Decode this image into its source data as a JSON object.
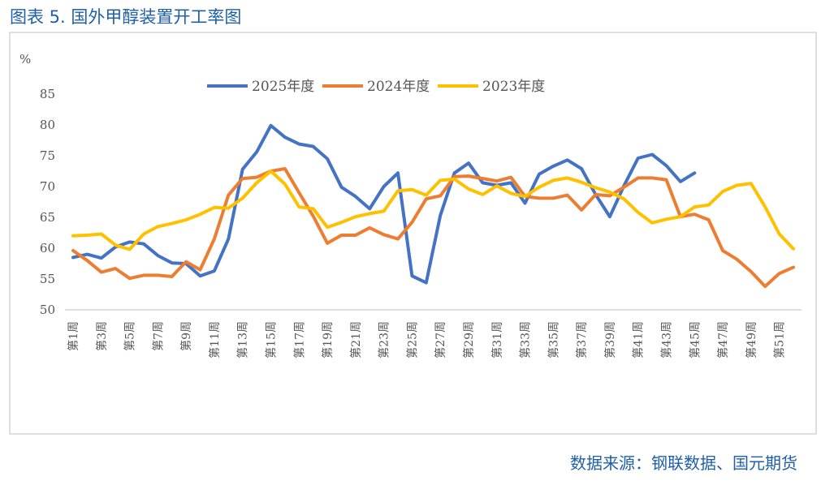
{
  "chart_data": {
    "type": "line",
    "title": "图表 5.   国外甲醇装置开工率图",
    "y_unit": "%",
    "source": "数据来源：钢联数据、国元期货",
    "categories": [
      "第1周",
      null,
      "第3周",
      null,
      "第5周",
      null,
      "第7周",
      null,
      "第9周",
      null,
      "第11周",
      null,
      "第13周",
      null,
      "第15周",
      null,
      "第17周",
      null,
      "第19周",
      null,
      "第21周",
      null,
      "第23周",
      null,
      "第25周",
      null,
      "第27周",
      null,
      "第29周",
      null,
      "第31周",
      null,
      "第33周",
      null,
      "第35周",
      null,
      "第37周",
      null,
      "第39周",
      null,
      "第41周",
      null,
      "第43周",
      null,
      "第45周",
      null,
      "第47周",
      null,
      "第49周",
      null,
      "第51周",
      null
    ],
    "ylim": [
      50,
      85
    ],
    "yticks": [
      50,
      55,
      60,
      65,
      70,
      75,
      80,
      85
    ],
    "legend": "top",
    "series": [
      {
        "name": "2025年度",
        "color": "#4472c4",
        "values": [
          58.5,
          59,
          58.4,
          60.2,
          61,
          60.7,
          58.8,
          57.6,
          57.5,
          55.5,
          56.3,
          61.5,
          72.8,
          75.6,
          79.9,
          78,
          76.9,
          76.5,
          74.5,
          69.9,
          68.4,
          66.4,
          70,
          72.2,
          55.5,
          54.4,
          65.3,
          72.2,
          73.8,
          70.6,
          70.2,
          70.6,
          67.3,
          72,
          73.3,
          74.3,
          72.9,
          68.7,
          65.1,
          70.1,
          74.6,
          75.2,
          73.4,
          70.8,
          72.2,
          null,
          null,
          null,
          null,
          null,
          null,
          null
        ]
      },
      {
        "name": "2024年度",
        "color": "#ed7d31",
        "values": [
          59.6,
          58,
          56.1,
          56.7,
          55.1,
          55.6,
          55.6,
          55.4,
          57.8,
          56.5,
          61.5,
          68.6,
          71.3,
          71.5,
          72.5,
          72.9,
          69,
          65.2,
          60.8,
          62.1,
          62.1,
          63.3,
          62.2,
          61.5,
          64.2,
          68,
          68.5,
          71.6,
          71.7,
          71.3,
          70.9,
          71.5,
          68.4,
          68.1,
          68.1,
          68.6,
          66.2,
          68.7,
          68.5,
          69.9,
          71.4,
          71.4,
          71.1,
          65.1,
          65.5,
          64.6,
          59.6,
          58.2,
          56.2,
          53.8,
          55.9,
          56.9
        ]
      },
      {
        "name": "2023年度",
        "color": "#ffc000",
        "values": [
          62,
          62.1,
          62.3,
          60.5,
          59.8,
          62.3,
          63.5,
          64,
          64.6,
          65.5,
          66.6,
          66.5,
          68.1,
          70.6,
          72.5,
          70.4,
          66.7,
          66.4,
          63.4,
          64.2,
          65.1,
          65.6,
          66,
          69.3,
          69.5,
          68.6,
          71,
          71.2,
          69.6,
          68.7,
          70.1,
          68.9,
          68.4,
          69.9,
          71,
          71.4,
          70.7,
          69.8,
          69.1,
          68,
          65.8,
          64.1,
          64.7,
          65.1,
          66.7,
          67,
          69.2,
          70.2,
          70.5,
          66.7,
          62.3,
          59.9
        ]
      }
    ]
  }
}
